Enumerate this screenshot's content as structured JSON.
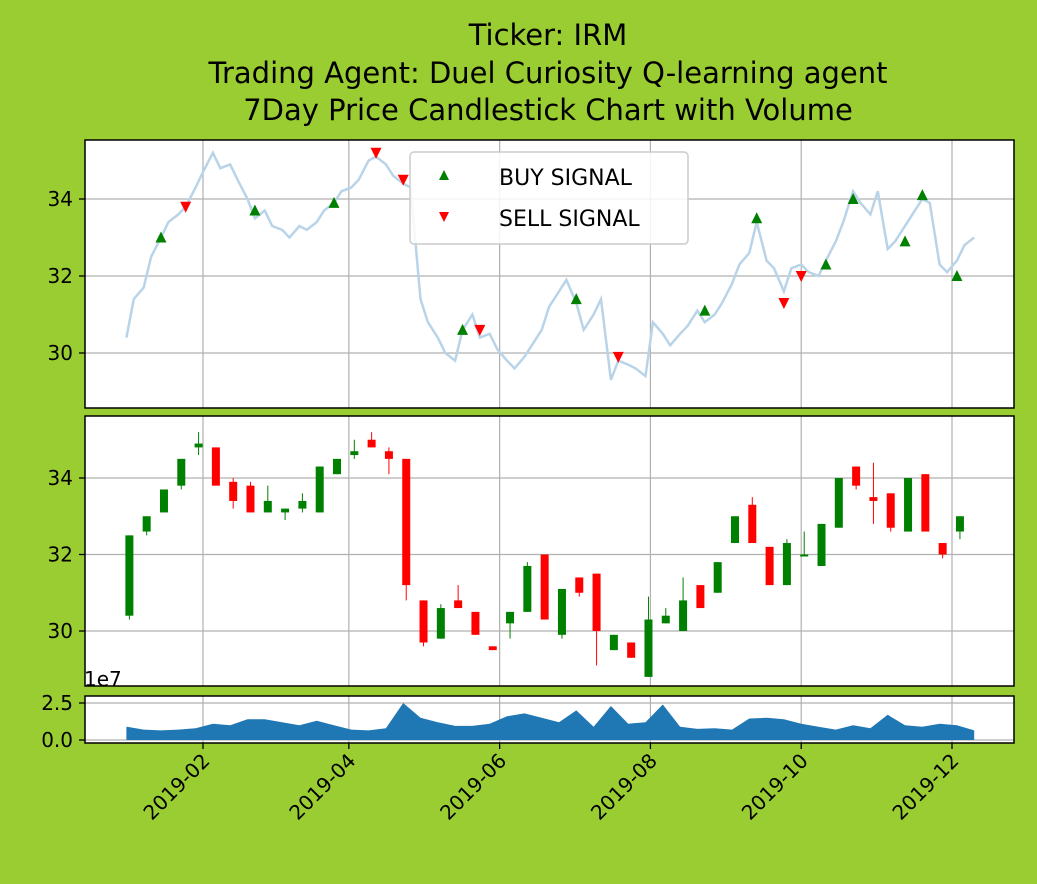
{
  "chart_data": {
    "type": "candlestick",
    "title_lines": [
      "Ticker: IRM",
      "Trading Agent: Duel Curiosity Q-learning agent",
      "7Day Price Candlestick Chart with Volume"
    ],
    "x_ticks": [
      "2019-02",
      "2019-04",
      "2019-06",
      "2019-08",
      "2019-10",
      "2019-12"
    ],
    "price_y_ticks": [
      "30",
      "32",
      "34"
    ],
    "volume_y_ticks": [
      "0.0",
      "2.5"
    ],
    "volume_exponent": "1e7",
    "price_ylim": [
      28.5,
      35.6
    ],
    "volume_ylim": [
      0,
      3
    ],
    "grid": true,
    "legend": {
      "placement": "top-center",
      "items": [
        {
          "label": "BUY SIGNAL",
          "color": "#008000",
          "marker": "triangle-up"
        },
        {
          "label": "SELL SIGNAL",
          "color": "#ff0000",
          "marker": "triangle-down"
        }
      ]
    },
    "colors": {
      "up": "#008000",
      "down": "#ff0000",
      "price_line": "#b9d4e8",
      "volume": "#1f77b4"
    },
    "price_line": [
      [
        "2019-01-01",
        30.4
      ],
      [
        "2019-01-04",
        31.4
      ],
      [
        "2019-01-08",
        31.7
      ],
      [
        "2019-01-11",
        32.5
      ],
      [
        "2019-01-15",
        33.0
      ],
      [
        "2019-01-18",
        33.4
      ],
      [
        "2019-01-22",
        33.6
      ],
      [
        "2019-01-25",
        33.8
      ],
      [
        "2019-01-29",
        34.3
      ],
      [
        "2019-02-01",
        34.7
      ],
      [
        "2019-02-05",
        35.2
      ],
      [
        "2019-02-08",
        34.8
      ],
      [
        "2019-02-12",
        34.9
      ],
      [
        "2019-02-15",
        34.5
      ],
      [
        "2019-02-19",
        34.0
      ],
      [
        "2019-02-22",
        33.5
      ],
      [
        "2019-02-26",
        33.7
      ],
      [
        "2019-03-01",
        33.3
      ],
      [
        "2019-03-05",
        33.2
      ],
      [
        "2019-03-08",
        33.0
      ],
      [
        "2019-03-12",
        33.3
      ],
      [
        "2019-03-15",
        33.2
      ],
      [
        "2019-03-19",
        33.4
      ],
      [
        "2019-03-22",
        33.7
      ],
      [
        "2019-03-26",
        33.9
      ],
      [
        "2019-03-29",
        34.2
      ],
      [
        "2019-04-02",
        34.3
      ],
      [
        "2019-04-05",
        34.5
      ],
      [
        "2019-04-09",
        35.0
      ],
      [
        "2019-04-12",
        35.1
      ],
      [
        "2019-04-16",
        34.9
      ],
      [
        "2019-04-19",
        34.6
      ],
      [
        "2019-04-23",
        34.4
      ],
      [
        "2019-04-26",
        34.3
      ],
      [
        "2019-04-30",
        31.4
      ],
      [
        "2019-05-03",
        30.8
      ],
      [
        "2019-05-07",
        30.4
      ],
      [
        "2019-05-10",
        30.0
      ],
      [
        "2019-05-14",
        29.8
      ],
      [
        "2019-05-17",
        30.6
      ],
      [
        "2019-05-21",
        31.0
      ],
      [
        "2019-05-24",
        30.4
      ],
      [
        "2019-05-28",
        30.5
      ],
      [
        "2019-05-31",
        30.1
      ],
      [
        "2019-06-04",
        29.8
      ],
      [
        "2019-06-07",
        29.6
      ],
      [
        "2019-06-11",
        29.9
      ],
      [
        "2019-06-14",
        30.2
      ],
      [
        "2019-06-18",
        30.6
      ],
      [
        "2019-06-21",
        31.2
      ],
      [
        "2019-06-25",
        31.6
      ],
      [
        "2019-06-28",
        31.9
      ],
      [
        "2019-07-02",
        31.3
      ],
      [
        "2019-07-05",
        30.6
      ],
      [
        "2019-07-09",
        31.0
      ],
      [
        "2019-07-12",
        31.4
      ],
      [
        "2019-07-16",
        29.3
      ],
      [
        "2019-07-19",
        29.8
      ],
      [
        "2019-07-23",
        29.7
      ],
      [
        "2019-07-26",
        29.6
      ],
      [
        "2019-07-30",
        29.4
      ],
      [
        "2019-08-02",
        30.8
      ],
      [
        "2019-08-06",
        30.5
      ],
      [
        "2019-08-09",
        30.2
      ],
      [
        "2019-08-13",
        30.5
      ],
      [
        "2019-08-16",
        30.7
      ],
      [
        "2019-08-20",
        31.1
      ],
      [
        "2019-08-23",
        30.8
      ],
      [
        "2019-08-27",
        31.0
      ],
      [
        "2019-08-30",
        31.3
      ],
      [
        "2019-09-03",
        31.8
      ],
      [
        "2019-09-06",
        32.3
      ],
      [
        "2019-09-10",
        32.6
      ],
      [
        "2019-09-13",
        33.4
      ],
      [
        "2019-09-17",
        32.4
      ],
      [
        "2019-09-20",
        32.2
      ],
      [
        "2019-09-24",
        31.6
      ],
      [
        "2019-09-27",
        32.2
      ],
      [
        "2019-10-01",
        32.3
      ],
      [
        "2019-10-04",
        32.1
      ],
      [
        "2019-10-08",
        32.0
      ],
      [
        "2019-10-11",
        32.4
      ],
      [
        "2019-10-15",
        32.9
      ],
      [
        "2019-10-18",
        33.4
      ],
      [
        "2019-10-22",
        34.2
      ],
      [
        "2019-10-25",
        33.9
      ],
      [
        "2019-10-29",
        33.6
      ],
      [
        "2019-11-01",
        34.2
      ],
      [
        "2019-11-05",
        32.7
      ],
      [
        "2019-11-08",
        32.9
      ],
      [
        "2019-11-12",
        33.3
      ],
      [
        "2019-11-15",
        33.6
      ],
      [
        "2019-11-19",
        34.0
      ],
      [
        "2019-11-22",
        33.9
      ],
      [
        "2019-11-26",
        32.3
      ],
      [
        "2019-11-29",
        32.1
      ],
      [
        "2019-12-03",
        32.4
      ],
      [
        "2019-12-06",
        32.8
      ],
      [
        "2019-12-10",
        33.0
      ]
    ],
    "buy_signals": [
      [
        "2019-01-15",
        33.0
      ],
      [
        "2019-02-22",
        33.7
      ],
      [
        "2019-03-26",
        33.9
      ],
      [
        "2019-05-17",
        30.6
      ],
      [
        "2019-07-02",
        31.4
      ],
      [
        "2019-08-23",
        31.1
      ],
      [
        "2019-09-13",
        33.5
      ],
      [
        "2019-10-11",
        32.3
      ],
      [
        "2019-10-22",
        34.0
      ],
      [
        "2019-11-12",
        32.9
      ],
      [
        "2019-11-19",
        34.1
      ],
      [
        "2019-12-03",
        32.0
      ]
    ],
    "sell_signals": [
      [
        "2019-01-25",
        33.8
      ],
      [
        "2019-04-12",
        35.2
      ],
      [
        "2019-04-23",
        34.5
      ],
      [
        "2019-05-24",
        30.6
      ],
      [
        "2019-07-19",
        29.9
      ],
      [
        "2019-09-24",
        31.3
      ],
      [
        "2019-10-01",
        32.0
      ]
    ],
    "candles": [
      [
        "2019-01-01",
        30.4,
        32.5,
        30.3,
        32.5
      ],
      [
        "2019-01-08",
        32.6,
        33.0,
        32.5,
        33.0
      ],
      [
        "2019-01-15",
        33.1,
        33.7,
        33.1,
        33.7
      ],
      [
        "2019-01-22",
        33.8,
        34.5,
        33.7,
        34.5
      ],
      [
        "2019-01-29",
        34.8,
        35.2,
        34.6,
        34.9
      ],
      [
        "2019-02-05",
        34.8,
        34.8,
        33.8,
        33.8
      ],
      [
        "2019-02-12",
        33.9,
        34.0,
        33.2,
        33.4
      ],
      [
        "2019-02-19",
        33.8,
        33.9,
        33.1,
        33.1
      ],
      [
        "2019-02-26",
        33.1,
        33.8,
        33.1,
        33.4
      ],
      [
        "2019-03-05",
        33.1,
        33.2,
        32.9,
        33.2
      ],
      [
        "2019-03-12",
        33.2,
        33.6,
        33.1,
        33.4
      ],
      [
        "2019-03-19",
        33.1,
        34.3,
        33.1,
        34.3
      ],
      [
        "2019-03-26",
        34.1,
        34.5,
        34.1,
        34.5
      ],
      [
        "2019-04-02",
        34.6,
        35.0,
        34.5,
        34.7
      ],
      [
        "2019-04-09",
        35.0,
        35.2,
        34.8,
        34.8
      ],
      [
        "2019-04-16",
        34.7,
        34.8,
        34.1,
        34.5
      ],
      [
        "2019-04-23",
        34.5,
        34.5,
        30.8,
        31.2
      ],
      [
        "2019-04-30",
        30.8,
        30.8,
        29.6,
        29.7
      ],
      [
        "2019-05-07",
        29.8,
        30.7,
        29.8,
        30.6
      ],
      [
        "2019-05-14",
        30.8,
        31.2,
        30.6,
        30.6
      ],
      [
        "2019-05-21",
        30.5,
        30.5,
        29.9,
        29.9
      ],
      [
        "2019-05-28",
        29.6,
        29.6,
        29.5,
        29.5
      ],
      [
        "2019-06-04",
        30.2,
        30.5,
        29.8,
        30.5
      ],
      [
        "2019-06-11",
        30.5,
        31.8,
        30.5,
        31.7
      ],
      [
        "2019-06-18",
        32.0,
        32.0,
        30.3,
        30.3
      ],
      [
        "2019-06-25",
        29.9,
        31.1,
        29.8,
        31.1
      ],
      [
        "2019-07-02",
        31.4,
        31.4,
        30.9,
        31.0
      ],
      [
        "2019-07-09",
        31.5,
        31.5,
        29.1,
        30.0
      ],
      [
        "2019-07-16",
        29.5,
        29.9,
        29.5,
        29.9
      ],
      [
        "2019-07-23",
        29.7,
        29.7,
        29.3,
        29.3
      ],
      [
        "2019-07-30",
        28.8,
        30.9,
        28.8,
        30.3
      ],
      [
        "2019-08-06",
        30.2,
        30.6,
        30.2,
        30.4
      ],
      [
        "2019-08-13",
        30.0,
        31.4,
        30.0,
        30.8
      ],
      [
        "2019-08-20",
        31.2,
        31.2,
        30.6,
        30.6
      ],
      [
        "2019-08-27",
        31.0,
        31.8,
        31.0,
        31.8
      ],
      [
        "2019-09-03",
        32.3,
        33.0,
        32.3,
        33.0
      ],
      [
        "2019-09-10",
        33.3,
        33.5,
        32.3,
        32.3
      ],
      [
        "2019-09-17",
        32.2,
        32.2,
        31.2,
        31.2
      ],
      [
        "2019-09-24",
        31.2,
        32.4,
        31.2,
        32.3
      ],
      [
        "2019-10-01",
        32.0,
        32.6,
        32.0,
        32.0
      ],
      [
        "2019-10-08",
        31.7,
        32.8,
        31.7,
        32.8
      ],
      [
        "2019-10-15",
        32.7,
        34.0,
        32.7,
        34.0
      ],
      [
        "2019-10-22",
        34.3,
        34.3,
        33.7,
        33.8
      ],
      [
        "2019-10-29",
        33.5,
        34.4,
        32.8,
        33.4
      ],
      [
        "2019-11-05",
        33.6,
        33.6,
        32.6,
        32.7
      ],
      [
        "2019-11-12",
        32.6,
        34.0,
        32.6,
        34.0
      ],
      [
        "2019-11-19",
        34.1,
        34.1,
        32.6,
        32.6
      ],
      [
        "2019-11-26",
        32.3,
        32.3,
        31.9,
        32.0
      ],
      [
        "2019-12-03",
        32.6,
        33.0,
        32.4,
        33.0
      ]
    ],
    "volume": [
      [
        "2019-01-01",
        0.9
      ],
      [
        "2019-01-08",
        0.7
      ],
      [
        "2019-01-15",
        0.65
      ],
      [
        "2019-01-22",
        0.7
      ],
      [
        "2019-01-29",
        0.8
      ],
      [
        "2019-02-05",
        1.1
      ],
      [
        "2019-02-12",
        1.0
      ],
      [
        "2019-02-19",
        1.4
      ],
      [
        "2019-02-26",
        1.4
      ],
      [
        "2019-03-05",
        1.2
      ],
      [
        "2019-03-12",
        1.0
      ],
      [
        "2019-03-19",
        1.3
      ],
      [
        "2019-03-26",
        1.0
      ],
      [
        "2019-04-02",
        0.7
      ],
      [
        "2019-04-09",
        0.65
      ],
      [
        "2019-04-16",
        0.8
      ],
      [
        "2019-04-23",
        2.5
      ],
      [
        "2019-04-30",
        1.5
      ],
      [
        "2019-05-07",
        1.2
      ],
      [
        "2019-05-14",
        0.95
      ],
      [
        "2019-05-21",
        0.95
      ],
      [
        "2019-05-28",
        1.1
      ],
      [
        "2019-06-04",
        1.6
      ],
      [
        "2019-06-11",
        1.8
      ],
      [
        "2019-06-18",
        1.5
      ],
      [
        "2019-06-25",
        1.2
      ],
      [
        "2019-07-02",
        2.0
      ],
      [
        "2019-07-09",
        0.9
      ],
      [
        "2019-07-16",
        2.3
      ],
      [
        "2019-07-23",
        1.1
      ],
      [
        "2019-07-30",
        1.2
      ],
      [
        "2019-08-06",
        2.4
      ],
      [
        "2019-08-13",
        0.9
      ],
      [
        "2019-08-20",
        0.75
      ],
      [
        "2019-08-27",
        0.8
      ],
      [
        "2019-09-03",
        0.7
      ],
      [
        "2019-09-10",
        1.45
      ],
      [
        "2019-09-17",
        1.5
      ],
      [
        "2019-09-24",
        1.4
      ],
      [
        "2019-10-01",
        1.1
      ],
      [
        "2019-10-08",
        0.9
      ],
      [
        "2019-10-15",
        0.7
      ],
      [
        "2019-10-22",
        1.0
      ],
      [
        "2019-10-29",
        0.8
      ],
      [
        "2019-11-05",
        1.7
      ],
      [
        "2019-11-12",
        1.0
      ],
      [
        "2019-11-19",
        0.9
      ],
      [
        "2019-11-26",
        1.1
      ],
      [
        "2019-12-03",
        1.0
      ],
      [
        "2019-12-10",
        0.65
      ]
    ]
  }
}
